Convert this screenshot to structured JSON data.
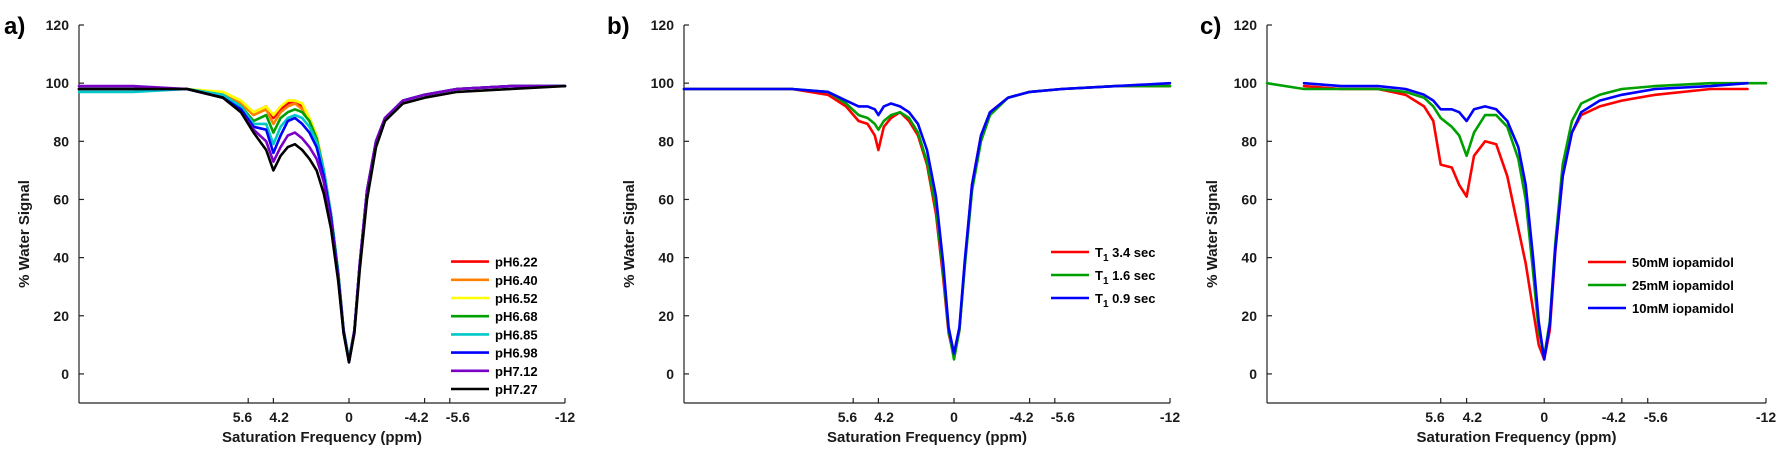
{
  "chart_data": [
    {
      "type": "line",
      "panel_label": "a)",
      "xlabel": "Saturation Frequency (ppm)",
      "ylabel": "% Water Signal",
      "xlim": [
        15,
        -12
      ],
      "ylim": [
        -10,
        120
      ],
      "xticks": [
        {
          "value": 5.6,
          "label": "5.6"
        },
        {
          "value": 4.2,
          "label": "4.2"
        },
        {
          "value": 0,
          "label": "0"
        },
        {
          "value": -4.2,
          "label": "-4.2"
        },
        {
          "value": -5.6,
          "label": "-5.6"
        },
        {
          "value": -12,
          "label": "-12"
        }
      ],
      "yticks": [
        0,
        20,
        40,
        60,
        80,
        100,
        120
      ],
      "legend_position": "lower-right",
      "series": [
        {
          "name": "pH6.22",
          "color": "#ff0000",
          "x": [
            15,
            12,
            9,
            7,
            6,
            5.3,
            4.6,
            4.2,
            3.8,
            3.4,
            3,
            2.6,
            2.2,
            1.8,
            1.4,
            1,
            0.6,
            0.3,
            0,
            -0.3,
            -0.6,
            -1,
            -1.5,
            -2,
            -3,
            -4.2,
            -6,
            -9,
            -12
          ],
          "y": [
            98,
            98,
            98,
            96,
            93,
            90,
            92,
            88,
            91,
            93,
            94,
            92,
            88,
            82,
            70,
            55,
            35,
            15,
            5,
            15,
            38,
            63,
            80,
            88,
            94,
            96,
            98,
            99,
            99
          ]
        },
        {
          "name": "pH6.40",
          "color": "#ff8000",
          "x": [
            15,
            12,
            9,
            7,
            6,
            5.3,
            4.6,
            4.2,
            3.8,
            3.4,
            3,
            2.6,
            2.2,
            1.8,
            1.4,
            1,
            0.6,
            0.3,
            0,
            -0.3,
            -0.6,
            -1,
            -1.5,
            -2,
            -3,
            -4.2,
            -6,
            -9,
            -12
          ],
          "y": [
            98,
            98,
            98,
            96,
            93,
            89,
            91,
            86,
            90,
            92,
            93,
            91,
            87,
            81,
            70,
            55,
            35,
            15,
            5,
            15,
            38,
            63,
            80,
            88,
            94,
            96,
            98,
            99,
            99
          ]
        },
        {
          "name": "pH6.52",
          "color": "#ffff00",
          "x": [
            15,
            12,
            9,
            7,
            6,
            5.3,
            4.6,
            4.2,
            3.8,
            3.4,
            3,
            2.6,
            2.2,
            1.8,
            1.4,
            1,
            0.6,
            0.3,
            0,
            -0.3,
            -0.6,
            -1,
            -1.5,
            -2,
            -3,
            -4.2,
            -6,
            -9,
            -12
          ],
          "y": [
            98,
            98,
            98,
            97,
            94,
            90,
            92,
            89,
            92,
            94,
            94,
            93,
            88,
            82,
            70,
            55,
            35,
            15,
            5,
            15,
            38,
            63,
            80,
            88,
            94,
            96,
            98,
            99,
            99
          ]
        },
        {
          "name": "pH6.68",
          "color": "#00a000",
          "x": [
            15,
            12,
            9,
            7,
            6,
            5.3,
            4.6,
            4.2,
            3.8,
            3.4,
            3,
            2.6,
            2.2,
            1.8,
            1.4,
            1,
            0.6,
            0.3,
            0,
            -0.3,
            -0.6,
            -1,
            -1.5,
            -2,
            -3,
            -4.2,
            -6,
            -9,
            -12
          ],
          "y": [
            98,
            98,
            98,
            96,
            92,
            87,
            89,
            83,
            88,
            90,
            91,
            90,
            87,
            81,
            70,
            55,
            35,
            15,
            5,
            15,
            38,
            63,
            80,
            88,
            94,
            96,
            98,
            99,
            99
          ]
        },
        {
          "name": "pH6.85",
          "color": "#00c8c8",
          "x": [
            15,
            12,
            9,
            7,
            6,
            5.3,
            4.6,
            4.2,
            3.8,
            3.4,
            3,
            2.6,
            2.2,
            1.8,
            1.4,
            1,
            0.6,
            0.3,
            0,
            -0.3,
            -0.6,
            -1,
            -1.5,
            -2,
            -3,
            -4.2,
            -6,
            -9,
            -12
          ],
          "y": [
            97,
            97,
            98,
            96,
            92,
            86,
            86,
            79,
            85,
            88,
            89,
            88,
            85,
            80,
            70,
            55,
            35,
            15,
            5,
            15,
            38,
            63,
            80,
            88,
            94,
            96,
            98,
            99,
            99
          ]
        },
        {
          "name": "pH6.98",
          "color": "#0000ff",
          "x": [
            15,
            12,
            9,
            7,
            6,
            5.3,
            4.6,
            4.2,
            3.8,
            3.4,
            3,
            2.6,
            2.2,
            1.8,
            1.4,
            1,
            0.6,
            0.3,
            0,
            -0.3,
            -0.6,
            -1,
            -1.5,
            -2,
            -3,
            -4.2,
            -6,
            -9,
            -12
          ],
          "y": [
            98,
            98,
            98,
            95,
            91,
            85,
            84,
            76,
            82,
            87,
            88,
            86,
            83,
            78,
            68,
            54,
            34,
            15,
            4,
            15,
            38,
            63,
            80,
            88,
            94,
            96,
            98,
            99,
            99
          ]
        },
        {
          "name": "pH7.12",
          "color": "#7a00c8",
          "x": [
            15,
            12,
            9,
            7,
            6,
            5.3,
            4.6,
            4.2,
            3.8,
            3.4,
            3,
            2.6,
            2.2,
            1.8,
            1.4,
            1,
            0.6,
            0.3,
            0,
            -0.3,
            -0.6,
            -1,
            -1.5,
            -2,
            -3,
            -4.2,
            -6,
            -9,
            -12
          ],
          "y": [
            99,
            99,
            98,
            95,
            90,
            84,
            80,
            73,
            78,
            82,
            83,
            81,
            78,
            74,
            66,
            52,
            33,
            14,
            4,
            15,
            38,
            63,
            80,
            88,
            94,
            96,
            98,
            99,
            99
          ]
        },
        {
          "name": "pH7.27",
          "color": "#000000",
          "x": [
            15,
            12,
            9,
            7,
            6,
            5.3,
            4.6,
            4.2,
            3.8,
            3.4,
            3,
            2.6,
            2.2,
            1.8,
            1.4,
            1,
            0.6,
            0.3,
            0,
            -0.3,
            -0.6,
            -1,
            -1.5,
            -2,
            -3,
            -4.2,
            -6,
            -9,
            -12
          ],
          "y": [
            98,
            98,
            98,
            95,
            90,
            83,
            77,
            70,
            75,
            78,
            79,
            77,
            74,
            70,
            62,
            50,
            32,
            14,
            4,
            14,
            36,
            60,
            78,
            87,
            93,
            95,
            97,
            98,
            99
          ]
        }
      ]
    },
    {
      "type": "line",
      "panel_label": "b)",
      "xlabel": "Saturation Frequency (ppm)",
      "ylabel": "% Water Signal",
      "xlim": [
        15,
        -12
      ],
      "ylim": [
        -10,
        120
      ],
      "xticks": [
        {
          "value": 5.6,
          "label": "5.6"
        },
        {
          "value": 4.2,
          "label": "4.2"
        },
        {
          "value": 0,
          "label": "0"
        },
        {
          "value": -4.2,
          "label": "-4.2"
        },
        {
          "value": -5.6,
          "label": "-5.6"
        },
        {
          "value": -12,
          "label": "-12"
        }
      ],
      "yticks": [
        0,
        20,
        40,
        60,
        80,
        100,
        120
      ],
      "legend_position": "lower-right",
      "series": [
        {
          "name": "3.4 sec",
          "name_prefix": "T",
          "name_sub": "1",
          "color": "#ff0000",
          "x": [
            15,
            12,
            9,
            7,
            6,
            5.3,
            4.8,
            4.4,
            4.2,
            3.9,
            3.5,
            3,
            2.5,
            2,
            1.5,
            1,
            0.6,
            0.3,
            0,
            -0.3,
            -0.6,
            -1,
            -1.5,
            -2,
            -3,
            -4.2,
            -6,
            -9,
            -12
          ],
          "y": [
            98,
            98,
            98,
            96,
            92,
            87,
            86,
            82,
            77,
            85,
            88,
            90,
            87,
            82,
            72,
            55,
            33,
            14,
            6,
            15,
            38,
            65,
            82,
            90,
            95,
            97,
            98,
            99,
            99
          ]
        },
        {
          "name": "1.6 sec",
          "name_prefix": "T",
          "name_sub": "1",
          "color": "#00a000",
          "x": [
            15,
            12,
            9,
            7,
            6,
            5.3,
            4.8,
            4.4,
            4.2,
            3.9,
            3.5,
            3,
            2.5,
            2,
            1.5,
            1,
            0.6,
            0.3,
            0,
            -0.3,
            -0.6,
            -1,
            -1.5,
            -2,
            -3,
            -4.2,
            -6,
            -9,
            -12
          ],
          "y": [
            98,
            98,
            98,
            97,
            93,
            89,
            88,
            86,
            84,
            87,
            89,
            90,
            88,
            83,
            73,
            57,
            35,
            15,
            5,
            15,
            37,
            63,
            80,
            89,
            95,
            97,
            98,
            99,
            99
          ]
        },
        {
          "name": "0.9 sec",
          "name_prefix": "T",
          "name_sub": "1",
          "color": "#0000ff",
          "x": [
            15,
            12,
            9,
            7,
            6,
            5.3,
            4.8,
            4.4,
            4.2,
            3.9,
            3.5,
            3,
            2.5,
            2,
            1.5,
            1,
            0.6,
            0.3,
            0,
            -0.3,
            -0.6,
            -1,
            -1.5,
            -2,
            -3,
            -4.2,
            -6,
            -9,
            -12
          ],
          "y": [
            98,
            98,
            98,
            97,
            94,
            92,
            92,
            91,
            89,
            92,
            93,
            92,
            90,
            86,
            77,
            61,
            38,
            16,
            7,
            16,
            39,
            65,
            82,
            90,
            95,
            97,
            98,
            99,
            100
          ]
        }
      ]
    },
    {
      "type": "line",
      "panel_label": "c)",
      "xlabel": "Saturation Frequency (ppm)",
      "ylabel": "% Water Signal",
      "xlim": [
        15,
        -12
      ],
      "ylim": [
        -10,
        120
      ],
      "xticks": [
        {
          "value": 5.6,
          "label": "5.6"
        },
        {
          "value": 4.2,
          "label": "4.2"
        },
        {
          "value": 0,
          "label": "0"
        },
        {
          "value": -4.2,
          "label": "-4.2"
        },
        {
          "value": -5.6,
          "label": "-5.6"
        },
        {
          "value": -12,
          "label": "-12"
        }
      ],
      "yticks": [
        0,
        20,
        40,
        60,
        80,
        100,
        120
      ],
      "legend_position": "lower-right",
      "series": [
        {
          "name": "50mM iopamidol",
          "color": "#ff0000",
          "x": [
            13,
            11,
            9,
            7.5,
            6.5,
            6,
            5.6,
            5,
            4.6,
            4.2,
            3.8,
            3.2,
            2.6,
            2,
            1.4,
            1,
            0.6,
            0.3,
            0,
            -0.3,
            -0.6,
            -1,
            -1.5,
            -2,
            -3,
            -4.2,
            -6,
            -9,
            -11
          ],
          "y": [
            99,
            98,
            98,
            96,
            92,
            87,
            72,
            71,
            65,
            61,
            75,
            80,
            79,
            68,
            50,
            38,
            22,
            10,
            5,
            15,
            42,
            68,
            83,
            89,
            92,
            94,
            96,
            98,
            98
          ]
        },
        {
          "name": "25mM iopamidol",
          "color": "#00a000",
          "x": [
            15,
            13,
            11,
            9,
            7.5,
            6.5,
            6,
            5.6,
            5,
            4.6,
            4.2,
            3.8,
            3.2,
            2.6,
            2,
            1.4,
            1,
            0.6,
            0.3,
            0,
            -0.3,
            -0.6,
            -1,
            -1.5,
            -2,
            -3,
            -4.2,
            -6,
            -9,
            -12
          ],
          "y": [
            100,
            98,
            98,
            98,
            97,
            95,
            92,
            88,
            85,
            82,
            75,
            83,
            89,
            89,
            85,
            74,
            60,
            35,
            15,
            6,
            18,
            45,
            72,
            87,
            93,
            96,
            98,
            99,
            100,
            100
          ]
        },
        {
          "name": "10mM iopamidol",
          "color": "#0000ff",
          "x": [
            13,
            11,
            9,
            7.5,
            6.5,
            6,
            5.6,
            5,
            4.6,
            4.2,
            3.8,
            3.2,
            2.6,
            2,
            1.4,
            1,
            0.6,
            0.3,
            0,
            -0.3,
            -0.6,
            -1,
            -1.5,
            -2,
            -3,
            -4.2,
            -6,
            -9,
            -11
          ],
          "y": [
            100,
            99,
            99,
            98,
            96,
            94,
            91,
            91,
            90,
            87,
            91,
            92,
            91,
            87,
            78,
            65,
            40,
            18,
            5,
            17,
            43,
            68,
            83,
            90,
            94,
            96,
            98,
            99,
            100
          ]
        }
      ]
    }
  ]
}
